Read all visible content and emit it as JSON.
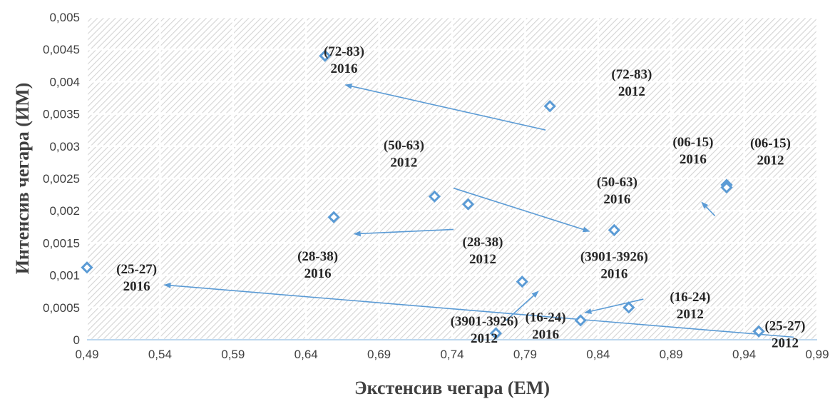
{
  "chart_data": {
    "type": "scatter",
    "xlabel": "Экстенсив чегара (ЕМ)",
    "ylabel": "Интенсив чегара (ИМ)",
    "xlim": [
      0.49,
      0.99
    ],
    "ylim": [
      0,
      0.005
    ],
    "x_ticks": [
      "0,49",
      "0,54",
      "0,59",
      "0,64",
      "0,69",
      "0,74",
      "0,79",
      "0,84",
      "0,89",
      "0,94",
      "0,99"
    ],
    "y_ticks": [
      "0",
      "0,0005",
      "0,001",
      "0,0015",
      "0,002",
      "0,0025",
      "0,003",
      "0,0035",
      "0,004",
      "0,0045",
      "0,005"
    ],
    "grid": true,
    "marker_color": "#5b9bd5",
    "arrow_color": "#5b9bd5",
    "points": [
      {
        "x": 0.49,
        "y": 0.00112
      },
      {
        "x": 0.653,
        "y": 0.0044
      },
      {
        "x": 0.659,
        "y": 0.0019
      },
      {
        "x": 0.728,
        "y": 0.00222
      },
      {
        "x": 0.751,
        "y": 0.0021
      },
      {
        "x": 0.77,
        "y": 0.0001
      },
      {
        "x": 0.788,
        "y": 0.0009
      },
      {
        "x": 0.807,
        "y": 0.00362
      },
      {
        "x": 0.828,
        "y": 0.0003
      },
      {
        "x": 0.851,
        "y": 0.0017
      },
      {
        "x": 0.861,
        "y": 0.0005
      },
      {
        "x": 0.928,
        "y": 0.0024
      },
      {
        "x": 0.928,
        "y": 0.00236
      },
      {
        "x": 0.95,
        "y": 0.00013
      }
    ],
    "labels": [
      {
        "line1": "(72-83)",
        "line2": "2016",
        "x": 0.666,
        "y": 0.0044
      },
      {
        "line1": "(72-83)",
        "line2": "2012",
        "x": 0.863,
        "y": 0.00405
      },
      {
        "line1": "(06-15)",
        "line2": "2016",
        "x": 0.905,
        "y": 0.003
      },
      {
        "line1": "(06-15)",
        "line2": "2012",
        "x": 0.958,
        "y": 0.00298
      },
      {
        "line1": "(50-63)",
        "line2": "2012",
        "x": 0.707,
        "y": 0.00295
      },
      {
        "line1": "(50-63)",
        "line2": "2016",
        "x": 0.853,
        "y": 0.00238
      },
      {
        "line1": "(28-38)",
        "line2": "2012",
        "x": 0.761,
        "y": 0.00145
      },
      {
        "line1": "(28-38)",
        "line2": "2016",
        "x": 0.648,
        "y": 0.00123
      },
      {
        "line1": "(3901-3926)",
        "line2": "2016",
        "x": 0.851,
        "y": 0.00122
      },
      {
        "line1": "(25-27)",
        "line2": "2016",
        "x": 0.524,
        "y": 0.00103
      },
      {
        "line1": "(16-24)",
        "line2": "2012",
        "x": 0.903,
        "y": 0.0006
      },
      {
        "line1": "(16-24)",
        "line2": "2016",
        "x": 0.804,
        "y": 0.00028
      },
      {
        "line1": "(3901-3926)",
        "line2": "2012",
        "x": 0.762,
        "y": 0.00022
      },
      {
        "line1": "(25-27)",
        "line2": "2012",
        "x": 0.968,
        "y": 0.00015
      }
    ],
    "arrows": [
      {
        "from": [
          0.804,
          0.00325
        ],
        "to": [
          0.667,
          0.00395
        ]
      },
      {
        "from": [
          0.741,
          0.00235
        ],
        "to": [
          0.834,
          0.00168
        ]
      },
      {
        "from": [
          0.741,
          0.00171
        ],
        "to": [
          0.673,
          0.00164
        ]
      },
      {
        "from": [
          0.92,
          0.00192
        ],
        "to": [
          0.911,
          0.00213
        ]
      },
      {
        "from": [
          0.871,
          0.00063
        ],
        "to": [
          0.831,
          0.00042
        ]
      },
      {
        "from": [
          0.777,
          0.0003
        ],
        "to": [
          0.799,
          0.00075
        ]
      },
      {
        "from": [
          0.974,
          4e-05
        ],
        "to": [
          0.543,
          0.00085
        ]
      }
    ]
  }
}
